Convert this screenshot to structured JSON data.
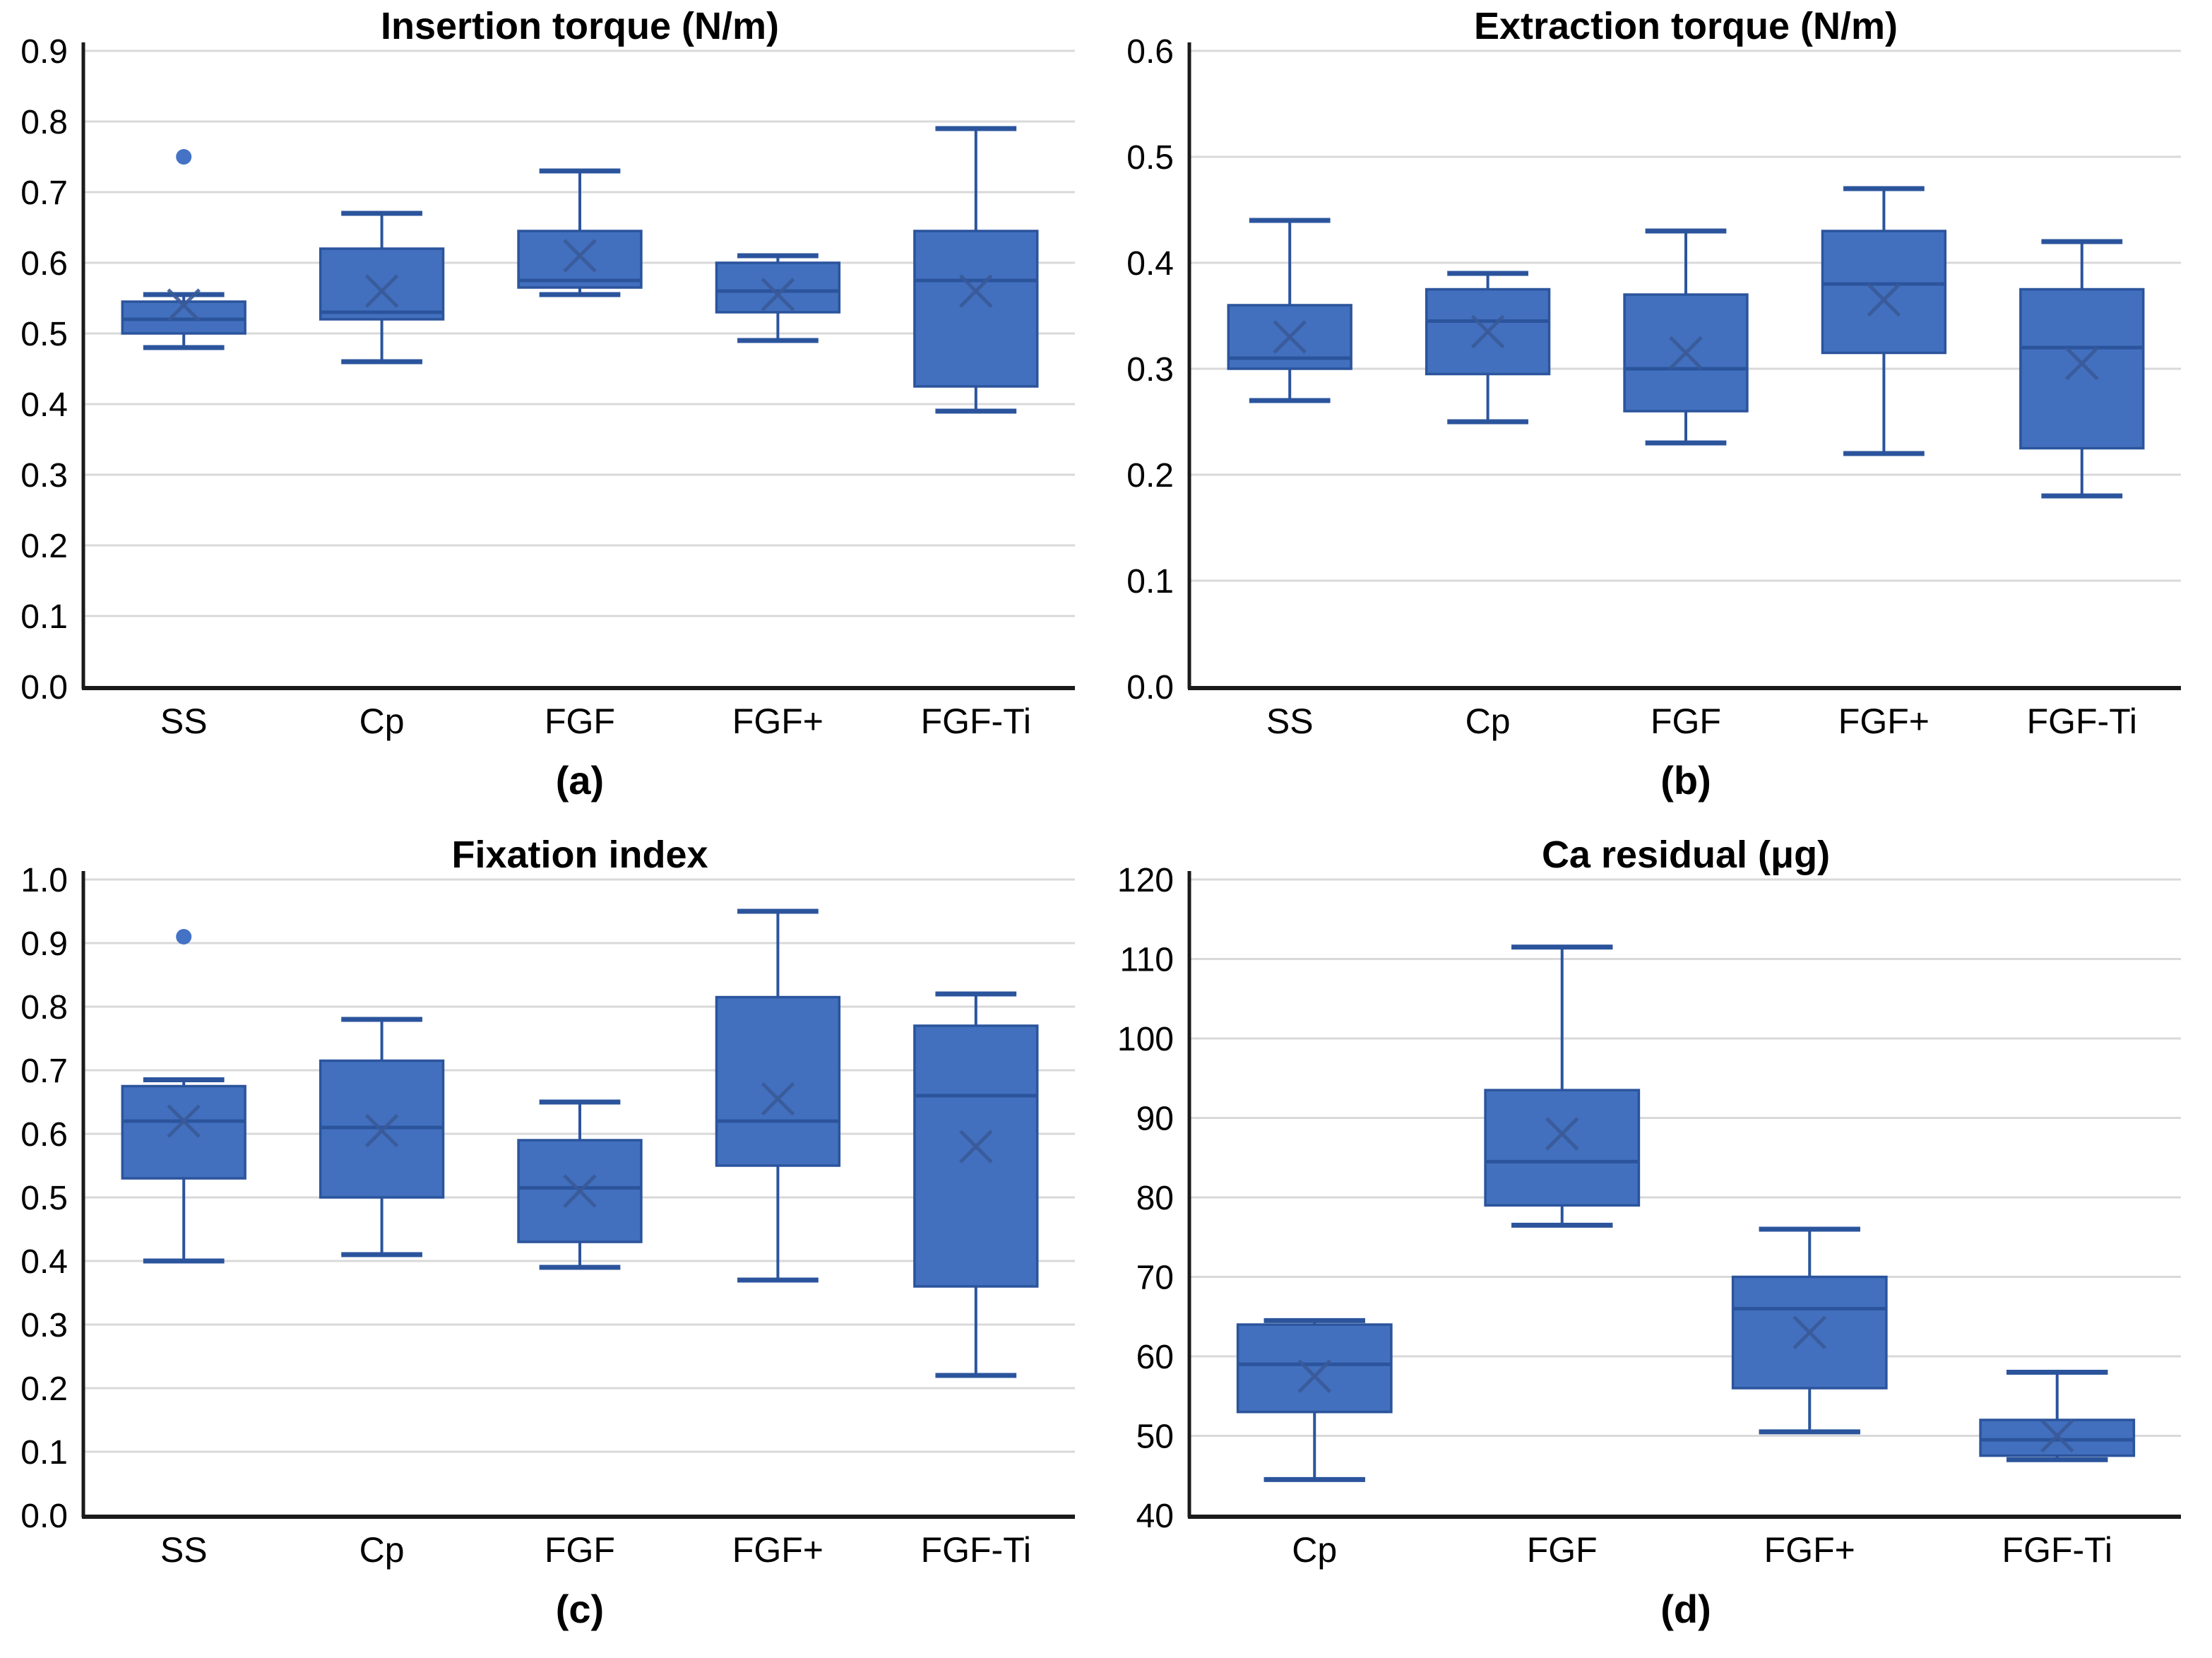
{
  "figure": {
    "background": "#ffffff",
    "description": "Four box-plot panels comparing screw coating groups"
  },
  "colors": {
    "box_fill": "#4270BE",
    "box_border": "#2B549C",
    "whisker": "#2B549C",
    "median": "#2B549C",
    "mean_marker": "#3A5A99",
    "outlier": "#4472C4",
    "gridline": "#D9D9D9",
    "axis": "#1A1A1A",
    "text": "#000000"
  },
  "chart_data": [
    {
      "key": "a",
      "type": "box",
      "title": "Insertion torque (N/m)",
      "panel_label": "(a)",
      "ylim": [
        0,
        0.9
      ],
      "yticks": [
        "0.0",
        "0.1",
        "0.2",
        "0.3",
        "0.4",
        "0.5",
        "0.6",
        "0.7",
        "0.8",
        "0.9"
      ],
      "grid": true,
      "legend": "none",
      "categories": [
        "SS",
        "Cp",
        "FGF",
        "FGF+",
        "FGF-Ti"
      ],
      "series": [
        {
          "category": "SS",
          "whisker_low": 0.48,
          "q1": 0.5,
          "median": 0.52,
          "q3": 0.545,
          "whisker_high": 0.555,
          "mean": 0.54,
          "outliers": [
            0.75
          ]
        },
        {
          "category": "Cp",
          "whisker_low": 0.46,
          "q1": 0.52,
          "median": 0.53,
          "q3": 0.62,
          "whisker_high": 0.67,
          "mean": 0.56,
          "outliers": []
        },
        {
          "category": "FGF",
          "whisker_low": 0.555,
          "q1": 0.565,
          "median": 0.575,
          "q3": 0.645,
          "whisker_high": 0.73,
          "mean": 0.61,
          "outliers": []
        },
        {
          "category": "FGF+",
          "whisker_low": 0.49,
          "q1": 0.53,
          "median": 0.56,
          "q3": 0.6,
          "whisker_high": 0.61,
          "mean": 0.555,
          "outliers": []
        },
        {
          "category": "FGF-Ti",
          "whisker_low": 0.39,
          "q1": 0.425,
          "median": 0.575,
          "q3": 0.645,
          "whisker_high": 0.79,
          "mean": 0.56,
          "outliers": []
        }
      ]
    },
    {
      "key": "b",
      "type": "box",
      "title": "Extraction torque (N/m)",
      "panel_label": "(b)",
      "ylim": [
        0,
        0.6
      ],
      "yticks": [
        "0.0",
        "0.1",
        "0.2",
        "0.3",
        "0.4",
        "0.5",
        "0.6"
      ],
      "grid": true,
      "legend": "none",
      "categories": [
        "SS",
        "Cp",
        "FGF",
        "FGF+",
        "FGF-Ti"
      ],
      "series": [
        {
          "category": "SS",
          "whisker_low": 0.27,
          "q1": 0.3,
          "median": 0.31,
          "q3": 0.36,
          "whisker_high": 0.44,
          "mean": 0.33,
          "outliers": []
        },
        {
          "category": "Cp",
          "whisker_low": 0.25,
          "q1": 0.295,
          "median": 0.345,
          "q3": 0.375,
          "whisker_high": 0.39,
          "mean": 0.335,
          "outliers": []
        },
        {
          "category": "FGF",
          "whisker_low": 0.23,
          "q1": 0.26,
          "median": 0.3,
          "q3": 0.37,
          "whisker_high": 0.43,
          "mean": 0.315,
          "outliers": []
        },
        {
          "category": "FGF+",
          "whisker_low": 0.22,
          "q1": 0.315,
          "median": 0.38,
          "q3": 0.43,
          "whisker_high": 0.47,
          "mean": 0.365,
          "outliers": []
        },
        {
          "category": "FGF-Ti",
          "whisker_low": 0.18,
          "q1": 0.225,
          "median": 0.32,
          "q3": 0.375,
          "whisker_high": 0.42,
          "mean": 0.305,
          "outliers": []
        }
      ]
    },
    {
      "key": "c",
      "type": "box",
      "title": "Fixation index",
      "panel_label": "(c)",
      "ylim": [
        0,
        1.0
      ],
      "yticks": [
        "0.0",
        "0.1",
        "0.2",
        "0.3",
        "0.4",
        "0.5",
        "0.6",
        "0.7",
        "0.8",
        "0.9",
        "1.0"
      ],
      "grid": true,
      "legend": "none",
      "categories": [
        "SS",
        "Cp",
        "FGF",
        "FGF+",
        "FGF-Ti"
      ],
      "series": [
        {
          "category": "SS",
          "whisker_low": 0.4,
          "q1": 0.53,
          "median": 0.62,
          "q3": 0.675,
          "whisker_high": 0.685,
          "mean": 0.62,
          "outliers": [
            0.91
          ]
        },
        {
          "category": "Cp",
          "whisker_low": 0.41,
          "q1": 0.5,
          "median": 0.61,
          "q3": 0.715,
          "whisker_high": 0.78,
          "mean": 0.605,
          "outliers": []
        },
        {
          "category": "FGF",
          "whisker_low": 0.39,
          "q1": 0.43,
          "median": 0.515,
          "q3": 0.59,
          "whisker_high": 0.65,
          "mean": 0.51,
          "outliers": []
        },
        {
          "category": "FGF+",
          "whisker_low": 0.37,
          "q1": 0.55,
          "median": 0.62,
          "q3": 0.815,
          "whisker_high": 0.95,
          "mean": 0.655,
          "outliers": []
        },
        {
          "category": "FGF-Ti",
          "whisker_low": 0.22,
          "q1": 0.36,
          "median": 0.66,
          "q3": 0.77,
          "whisker_high": 0.82,
          "mean": 0.58,
          "outliers": []
        }
      ]
    },
    {
      "key": "d",
      "type": "box",
      "title": "Ca residual (μg)",
      "panel_label": "(d)",
      "ylim": [
        40,
        120
      ],
      "yticks": [
        "40",
        "50",
        "60",
        "70",
        "80",
        "90",
        "100",
        "110",
        "120"
      ],
      "grid": true,
      "legend": "none",
      "categories": [
        "Cp",
        "FGF",
        "FGF+",
        "FGF-Ti"
      ],
      "series": [
        {
          "category": "Cp",
          "whisker_low": 44.5,
          "q1": 53,
          "median": 59,
          "q3": 64,
          "whisker_high": 64.5,
          "mean": 57.5,
          "outliers": []
        },
        {
          "category": "FGF",
          "whisker_low": 76.5,
          "q1": 79,
          "median": 84.5,
          "q3": 93.5,
          "whisker_high": 111.5,
          "mean": 88,
          "outliers": []
        },
        {
          "category": "FGF+",
          "whisker_low": 50.5,
          "q1": 56,
          "median": 66,
          "q3": 70,
          "whisker_high": 76,
          "mean": 63,
          "outliers": []
        },
        {
          "category": "FGF-Ti",
          "whisker_low": 47,
          "q1": 47.5,
          "median": 49.5,
          "q3": 52,
          "whisker_high": 58,
          "mean": 50,
          "outliers": []
        }
      ]
    }
  ]
}
